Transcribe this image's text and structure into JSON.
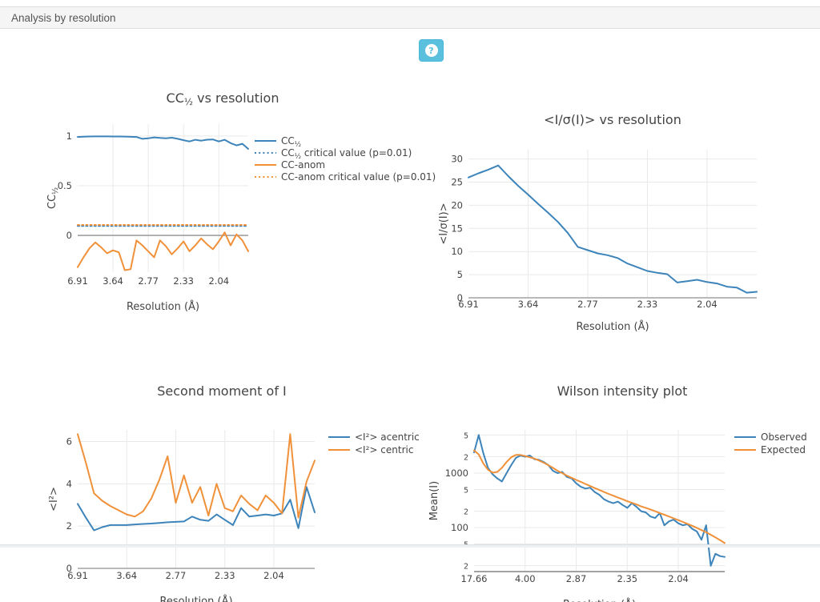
{
  "header": {
    "title": "Analysis by resolution"
  },
  "help_button": {
    "glyph": "?",
    "color": "#5bc0de"
  },
  "palette": {
    "blue": "#3d84ba",
    "orange": "#f0913a"
  },
  "chart_data": [
    {
      "id": "cc_half",
      "type": "line",
      "title": "CC½ vs resolution",
      "xlabel": "Resolution (Å)",
      "ylabel": "CC½",
      "yscale": "linear",
      "ylim": [
        -0.37,
        1.12
      ],
      "zeroline": true,
      "legend_position": "right",
      "grid": true,
      "y_ticks": [
        {
          "v": 0,
          "label": "0"
        },
        {
          "v": 0.5,
          "label": "0.5"
        },
        {
          "v": 1,
          "label": "1"
        }
      ],
      "x_tick_index": [
        0,
        6,
        12,
        18,
        24
      ],
      "x_tick_labels": [
        "6.91",
        "3.64",
        "2.77",
        "2.33",
        "2.04"
      ],
      "series": [
        {
          "name": "CC½",
          "color": "blue",
          "dash": "solid",
          "values": [
            0.99,
            0.993,
            0.995,
            0.996,
            0.996,
            0.996,
            0.995,
            0.995,
            0.994,
            0.992,
            0.99,
            0.972,
            0.977,
            0.986,
            0.981,
            0.977,
            0.983,
            0.972,
            0.958,
            0.945,
            0.962,
            0.953,
            0.963,
            0.965,
            0.945,
            0.962,
            0.928,
            0.906,
            0.922,
            0.87
          ]
        },
        {
          "name": "CC½ critical value (p=0.01)",
          "color": "blue",
          "dash": "dot",
          "const": 0.095
        },
        {
          "name": "CC-anom",
          "color": "orange",
          "dash": "solid",
          "values": [
            -0.32,
            -0.22,
            -0.13,
            -0.07,
            -0.12,
            -0.18,
            -0.15,
            -0.17,
            -0.35,
            -0.34,
            -0.05,
            -0.1,
            -0.16,
            -0.22,
            -0.05,
            -0.11,
            -0.19,
            -0.13,
            -0.06,
            -0.16,
            -0.1,
            -0.03,
            -0.09,
            -0.14,
            -0.06,
            0.03,
            -0.1,
            0.01,
            -0.05,
            -0.16
          ]
        },
        {
          "name": "CC-anom critical value (p=0.01)",
          "color": "orange",
          "dash": "dot",
          "const": 0.105
        }
      ]
    },
    {
      "id": "i_over_sigma",
      "type": "line",
      "title": "<I/σ(I)> vs resolution",
      "xlabel": "Resolution (Å)",
      "ylabel": "<I/σ(I)>",
      "yscale": "linear",
      "ylim": [
        0,
        32
      ],
      "zeroline": true,
      "legend_position": "none",
      "grid": true,
      "y_ticks": [
        {
          "v": 0,
          "label": "0"
        },
        {
          "v": 5,
          "label": "5"
        },
        {
          "v": 10,
          "label": "10"
        },
        {
          "v": 15,
          "label": "15"
        },
        {
          "v": 20,
          "label": "20"
        },
        {
          "v": 25,
          "label": "25"
        },
        {
          "v": 30,
          "label": "30"
        }
      ],
      "x_tick_index": [
        0,
        6,
        12,
        18,
        24
      ],
      "x_tick_labels": [
        "6.91",
        "3.64",
        "2.77",
        "2.33",
        "2.04"
      ],
      "series": [
        {
          "name": "<I/σ(I)>",
          "color": "blue",
          "dash": "solid",
          "values": [
            26.0,
            26.9,
            27.7,
            28.6,
            26.3,
            24.2,
            22.3,
            20.3,
            18.4,
            16.4,
            14.0,
            11.0,
            10.3,
            9.6,
            9.2,
            8.6,
            7.4,
            6.6,
            5.8,
            5.4,
            5.1,
            3.3,
            3.6,
            3.9,
            3.4,
            3.1,
            2.4,
            2.2,
            1.1,
            1.3
          ]
        }
      ]
    },
    {
      "id": "second_moment",
      "type": "line",
      "title": "Second moment of I",
      "xlabel": "Resolution (Å)",
      "ylabel": "<I²>",
      "yscale": "linear",
      "ylim": [
        0,
        6.55
      ],
      "zeroline": true,
      "legend_position": "right",
      "grid": true,
      "y_ticks": [
        {
          "v": 0,
          "label": "0"
        },
        {
          "v": 2,
          "label": "2"
        },
        {
          "v": 4,
          "label": "4"
        },
        {
          "v": 6,
          "label": "6"
        }
      ],
      "x_tick_index": [
        0,
        6,
        12,
        18,
        24
      ],
      "x_tick_labels": [
        "6.91",
        "3.64",
        "2.77",
        "2.33",
        "2.04"
      ],
      "series": [
        {
          "name": "<I²> acentric",
          "color": "blue",
          "dash": "solid",
          "values": [
            3.05,
            2.4,
            1.8,
            1.95,
            2.05,
            2.05,
            2.05,
            2.08,
            2.1,
            2.12,
            2.15,
            2.18,
            2.2,
            2.22,
            2.45,
            2.3,
            2.25,
            2.55,
            2.3,
            2.05,
            2.85,
            2.45,
            2.5,
            2.55,
            2.5,
            2.6,
            3.25,
            1.9,
            3.85,
            2.65
          ]
        },
        {
          "name": "<I²> centric",
          "color": "orange",
          "dash": "solid",
          "values": [
            6.35,
            5.0,
            3.55,
            3.2,
            2.95,
            2.75,
            2.55,
            2.45,
            2.7,
            3.3,
            4.2,
            5.3,
            3.1,
            4.4,
            3.1,
            3.85,
            2.5,
            4.0,
            2.85,
            2.7,
            3.45,
            3.05,
            2.75,
            3.45,
            3.1,
            2.6,
            6.35,
            2.4,
            4.1,
            5.1
          ]
        }
      ]
    },
    {
      "id": "wilson",
      "type": "line",
      "title": "Wilson intensity plot",
      "xlabel": "Resolution (Å)",
      "ylabel": "Mean(I)",
      "yscale": "log",
      "ylim": [
        15.6,
        6200
      ],
      "zeroline": false,
      "axisline": true,
      "legend_position": "right",
      "grid": true,
      "y_ticks": [
        {
          "v": 5000,
          "label": "5",
          "minor": true
        },
        {
          "v": 2000,
          "label": "2",
          "minor": true
        },
        {
          "v": 1000,
          "label": "1000"
        },
        {
          "v": 500,
          "label": "5",
          "minor": true
        },
        {
          "v": 200,
          "label": "2",
          "minor": true
        },
        {
          "v": 100,
          "label": "100"
        },
        {
          "v": 50,
          "label": "5",
          "minor": true
        },
        {
          "v": 20,
          "label": "2",
          "minor": true
        }
      ],
      "x_tick_index": [
        0,
        11,
        22,
        33,
        44
      ],
      "x_tick_labels": [
        "17.66",
        "4.00",
        "2.87",
        "2.35",
        "2.04"
      ],
      "series": [
        {
          "name": "Observed",
          "color": "blue",
          "dash": "solid",
          "values": [
            2400,
            5000,
            2300,
            1250,
            950,
            800,
            700,
            1000,
            1400,
            1900,
            2100,
            2000,
            2100,
            1800,
            1750,
            1600,
            1400,
            1100,
            1000,
            1050,
            850,
            800,
            650,
            560,
            520,
            540,
            450,
            400,
            330,
            300,
            280,
            300,
            260,
            230,
            280,
            240,
            200,
            190,
            160,
            150,
            185,
            110,
            130,
            140,
            120,
            110,
            115,
            95,
            85,
            60,
            110,
            20,
            33,
            30,
            29
          ]
        },
        {
          "name": "Expected",
          "color": "orange",
          "dash": "solid",
          "values": [
            2600,
            2200,
            1500,
            1150,
            1020,
            1050,
            1250,
            1600,
            1950,
            2150,
            2150,
            2050,
            1950,
            1850,
            1700,
            1550,
            1400,
            1250,
            1100,
            1000,
            900,
            820,
            750,
            690,
            630,
            580,
            530,
            490,
            450,
            415,
            385,
            355,
            330,
            305,
            285,
            265,
            245,
            230,
            215,
            200,
            185,
            172,
            160,
            148,
            137,
            127,
            117,
            108,
            99,
            90,
            82,
            74,
            66,
            59,
            52
          ]
        }
      ]
    }
  ]
}
